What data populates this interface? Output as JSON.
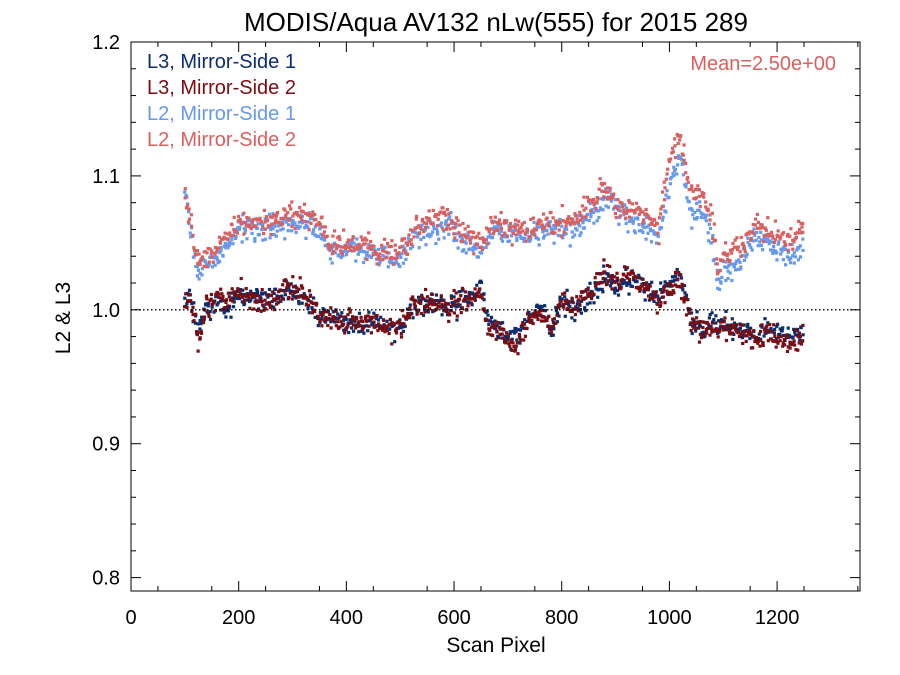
{
  "chart_data": {
    "type": "scatter",
    "title": "MODIS/Aqua AV132 nLw(555) for 2015 289",
    "xlabel": "Scan Pixel",
    "ylabel": "L2 & L3",
    "xlim": [
      0,
      1354
    ],
    "ylim": [
      0.79,
      1.2
    ],
    "x_ticks": [
      0,
      200,
      400,
      600,
      800,
      1000,
      1200
    ],
    "x_tick_labels": [
      "0",
      "200",
      "400",
      "600",
      "800",
      "1000",
      "1200"
    ],
    "y_ticks": [
      0.8,
      0.9,
      1.0,
      1.1,
      1.2
    ],
    "y_tick_labels": [
      "0.8",
      "0.9",
      "1.0",
      "1.1",
      "1.2"
    ],
    "reference_line": {
      "y": 1.0,
      "style": "dotted"
    },
    "annotation": {
      "text": "Mean=2.50e+00",
      "color": "#d9605f",
      "position": "top-right"
    },
    "legend_position": "top-left",
    "grid": false,
    "x_range_of_data": [
      100,
      1250
    ],
    "series": [
      {
        "name": "L3, Mirror-Side 1",
        "color": "#0b2c6e",
        "profile_x": [
          100,
          110,
          125,
          140,
          160,
          180,
          200,
          230,
          260,
          290,
          310,
          330,
          350,
          370,
          400,
          430,
          460,
          490,
          510,
          530,
          560,
          590,
          610,
          630,
          650,
          665,
          680,
          700,
          720,
          740,
          760,
          780,
          800,
          820,
          840,
          860,
          880,
          900,
          920,
          940,
          960,
          980,
          1000,
          1020,
          1040,
          1060,
          1080,
          1100,
          1120,
          1140,
          1160,
          1180,
          1200,
          1220,
          1240,
          1250
        ],
        "profile_y": [
          1.005,
          1.01,
          0.985,
          1.0,
          1.005,
          1.0,
          1.01,
          1.01,
          1.005,
          1.015,
          1.015,
          1.005,
          0.995,
          0.995,
          0.99,
          0.99,
          0.99,
          0.985,
          0.995,
          1.005,
          1.005,
          1.0,
          1.005,
          1.01,
          1.015,
          0.99,
          0.985,
          0.98,
          0.98,
          0.995,
          1.005,
          0.985,
          1.005,
          1.0,
          1.005,
          1.015,
          1.025,
          1.015,
          1.02,
          1.025,
          1.015,
          1.01,
          1.02,
          1.025,
          0.995,
          0.985,
          0.99,
          0.99,
          0.985,
          0.985,
          0.98,
          0.985,
          0.985,
          0.98,
          0.98,
          0.985
        ]
      },
      {
        "name": "L3, Mirror-Side 2",
        "color": "#7a0d12",
        "profile_x": [
          100,
          110,
          125,
          140,
          160,
          180,
          200,
          230,
          260,
          290,
          310,
          330,
          350,
          370,
          400,
          430,
          460,
          490,
          510,
          530,
          560,
          590,
          610,
          630,
          650,
          665,
          680,
          700,
          720,
          740,
          760,
          780,
          800,
          820,
          840,
          860,
          880,
          900,
          920,
          940,
          960,
          980,
          1000,
          1020,
          1040,
          1060,
          1080,
          1100,
          1120,
          1140,
          1160,
          1180,
          1200,
          1220,
          1240,
          1250
        ],
        "profile_y": [
          1.005,
          1.01,
          0.975,
          1.0,
          1.01,
          1.005,
          1.015,
          1.01,
          1.005,
          1.015,
          1.015,
          1.005,
          0.995,
          0.995,
          0.99,
          0.99,
          0.99,
          0.985,
          0.995,
          1.005,
          1.005,
          1.0,
          1.005,
          1.01,
          1.01,
          0.985,
          0.985,
          0.975,
          0.975,
          0.99,
          1.0,
          0.985,
          1.005,
          1.005,
          1.01,
          1.015,
          1.03,
          1.02,
          1.025,
          1.02,
          1.015,
          1.005,
          1.015,
          1.02,
          0.99,
          0.985,
          0.985,
          0.985,
          0.985,
          0.98,
          0.975,
          0.985,
          0.98,
          0.975,
          0.98,
          0.985
        ]
      },
      {
        "name": "L2, Mirror-Side 1",
        "color": "#6699ee",
        "profile_x": [
          100,
          110,
          125,
          140,
          160,
          180,
          200,
          230,
          260,
          290,
          310,
          330,
          350,
          370,
          400,
          430,
          460,
          490,
          510,
          530,
          560,
          590,
          610,
          630,
          650,
          665,
          680,
          700,
          720,
          740,
          760,
          780,
          800,
          820,
          840,
          860,
          880,
          900,
          920,
          940,
          960,
          980,
          1000,
          1020,
          1040,
          1060,
          1080,
          1090,
          1100,
          1120,
          1140,
          1160,
          1180,
          1200,
          1220,
          1240,
          1250
        ],
        "profile_y": [
          1.085,
          1.06,
          1.025,
          1.035,
          1.04,
          1.05,
          1.06,
          1.06,
          1.06,
          1.065,
          1.065,
          1.065,
          1.06,
          1.045,
          1.045,
          1.045,
          1.04,
          1.035,
          1.045,
          1.055,
          1.06,
          1.065,
          1.055,
          1.05,
          1.045,
          1.055,
          1.06,
          1.055,
          1.055,
          1.055,
          1.06,
          1.06,
          1.06,
          1.06,
          1.065,
          1.07,
          1.085,
          1.075,
          1.07,
          1.065,
          1.06,
          1.055,
          1.095,
          1.115,
          1.07,
          1.075,
          1.05,
          1.015,
          1.025,
          1.035,
          1.04,
          1.055,
          1.05,
          1.045,
          1.04,
          1.045,
          1.055
        ]
      },
      {
        "name": "L2, Mirror-Side 2",
        "color": "#d9605f",
        "profile_x": [
          100,
          110,
          125,
          140,
          160,
          180,
          200,
          230,
          260,
          290,
          310,
          330,
          350,
          370,
          400,
          430,
          460,
          490,
          510,
          530,
          560,
          590,
          610,
          630,
          650,
          665,
          680,
          700,
          720,
          740,
          760,
          780,
          800,
          820,
          840,
          860,
          880,
          900,
          920,
          940,
          960,
          980,
          1000,
          1020,
          1040,
          1060,
          1080,
          1090,
          1100,
          1120,
          1140,
          1160,
          1180,
          1200,
          1220,
          1240,
          1250
        ],
        "profile_y": [
          1.085,
          1.065,
          1.035,
          1.04,
          1.045,
          1.055,
          1.065,
          1.065,
          1.065,
          1.07,
          1.07,
          1.07,
          1.065,
          1.05,
          1.05,
          1.05,
          1.045,
          1.04,
          1.05,
          1.06,
          1.065,
          1.07,
          1.06,
          1.055,
          1.05,
          1.06,
          1.065,
          1.06,
          1.06,
          1.06,
          1.065,
          1.065,
          1.065,
          1.065,
          1.075,
          1.08,
          1.095,
          1.08,
          1.075,
          1.075,
          1.07,
          1.06,
          1.115,
          1.13,
          1.085,
          1.09,
          1.065,
          1.03,
          1.04,
          1.045,
          1.05,
          1.065,
          1.06,
          1.055,
          1.05,
          1.055,
          1.06
        ]
      }
    ]
  }
}
